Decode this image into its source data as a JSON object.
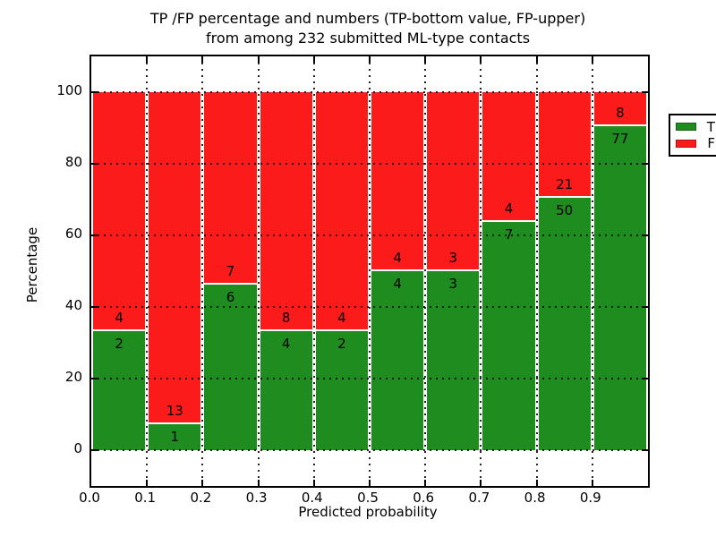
{
  "figure": {
    "title_line1": "TP /FP percentage and numbers (TP-bottom value, FP-upper)",
    "title_line2": "from among 232 submitted ML-type contacts",
    "xlabel": "Predicted probability",
    "ylabel": "Percentage"
  },
  "chart_data": {
    "type": "bar",
    "stacked": true,
    "normalized_to_percent": 100,
    "title": "TP /FP percentage and numbers (TP-bottom value, FP-upper) from among 232 submitted ML-type contacts",
    "xlabel": "Predicted probability",
    "ylabel": "Percentage",
    "total_contacts": 232,
    "bin_width": 0.1,
    "categories": [
      "0.0",
      "0.1",
      "0.2",
      "0.3",
      "0.4",
      "0.5",
      "0.6",
      "0.7",
      "0.8",
      "0.9"
    ],
    "series": [
      {
        "name": "TP",
        "color": "#1f8c1f",
        "values": [
          2,
          1,
          6,
          4,
          2,
          4,
          3,
          7,
          50,
          77
        ]
      },
      {
        "name": "FP",
        "color": "#fb1b1b",
        "values": [
          4,
          13,
          7,
          8,
          4,
          4,
          3,
          4,
          21,
          8
        ]
      }
    ],
    "tp_percent_of_bin": [
      33.3,
      7.1,
      46.2,
      33.3,
      33.3,
      50.0,
      50.0,
      63.6,
      70.4,
      90.6
    ],
    "x_ticks": [
      "0.0",
      "0.1",
      "0.2",
      "0.3",
      "0.4",
      "0.5",
      "0.6",
      "0.7",
      "0.8",
      "0.9"
    ],
    "y_ticks": [
      "0",
      "20",
      "40",
      "60",
      "80",
      "100"
    ],
    "y_tick_values": [
      0,
      20,
      40,
      60,
      80,
      100
    ],
    "xlim": [
      0,
      1
    ],
    "ylim": [
      -10,
      110
    ],
    "grid": "dotted both axes",
    "legend": {
      "position": "upper right",
      "entries": [
        {
          "label": "TP",
          "color": "#1f8c1f"
        },
        {
          "label": "FP",
          "color": "#fb1b1b"
        }
      ]
    }
  }
}
